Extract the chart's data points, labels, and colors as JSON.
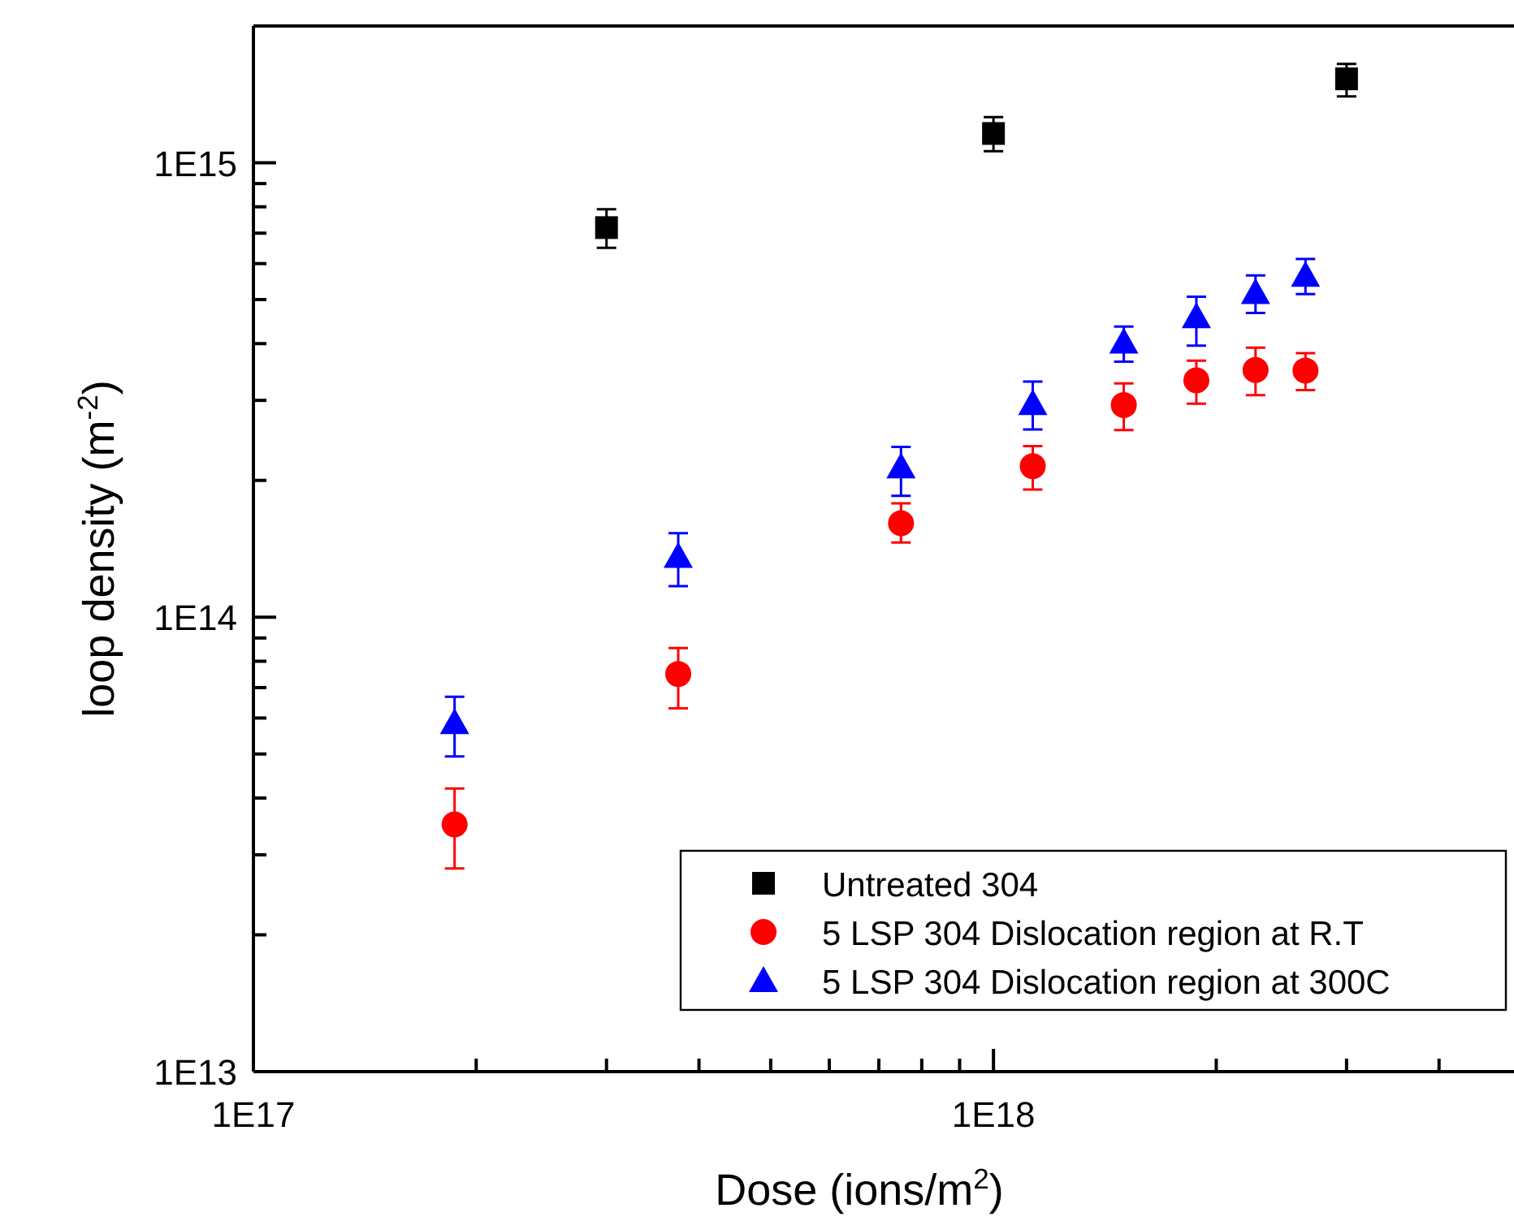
{
  "chart_data": {
    "type": "scatter",
    "xlabel": "Dose (ions/m$^{2}$)",
    "ylabel": "loop density (m$^{-2}$)",
    "log": "xy",
    "xlim": [
      1e+17,
      5e+18
    ],
    "ylim": [
      10000000000000.0,
      2000000000000000.0
    ],
    "xticks": [
      {
        "value": 1e+17,
        "label": "1E17"
      },
      {
        "value": 2e+17,
        "label": null
      },
      {
        "value": 3e+17,
        "label": null
      },
      {
        "value": 4e+17,
        "label": null
      },
      {
        "value": 5e+17,
        "label": null
      },
      {
        "value": 6e+17,
        "label": null
      },
      {
        "value": 7e+17,
        "label": null
      },
      {
        "value": 8e+17,
        "label": null
      },
      {
        "value": 9e+17,
        "label": null
      },
      {
        "value": 1e+18,
        "label": "1E18"
      },
      {
        "value": 2e+18,
        "label": null
      },
      {
        "value": 3e+18,
        "label": null
      },
      {
        "value": 4e+18,
        "label": null
      }
    ],
    "yticks": [
      {
        "value": 10000000000000.0,
        "label": "1E13"
      },
      {
        "value": 20000000000000.0,
        "label": null
      },
      {
        "value": 30000000000000.0,
        "label": null
      },
      {
        "value": 40000000000000.0,
        "label": null
      },
      {
        "value": 50000000000000.0,
        "label": null
      },
      {
        "value": 60000000000000.0,
        "label": null
      },
      {
        "value": 70000000000000.0,
        "label": null
      },
      {
        "value": 80000000000000.0,
        "label": null
      },
      {
        "value": 90000000000000.0,
        "label": null
      },
      {
        "value": 100000000000000.0,
        "label": "1E14"
      },
      {
        "value": 200000000000000.0,
        "label": null
      },
      {
        "value": 300000000000000.0,
        "label": null
      },
      {
        "value": 400000000000000.0,
        "label": null
      },
      {
        "value": 500000000000000.0,
        "label": null
      },
      {
        "value": 600000000000000.0,
        "label": null
      },
      {
        "value": 700000000000000.0,
        "label": null
      },
      {
        "value": 800000000000000.0,
        "label": null
      },
      {
        "value": 900000000000000.0,
        "label": null
      },
      {
        "value": 1000000000000000.0,
        "label": "1E15"
      }
    ],
    "grid": false,
    "legend": "bottom right",
    "series": [
      {
        "name": "Untreated 304",
        "color": "#000000",
        "marker": "square",
        "x": [
          3e+17,
          1e+18,
          3e+18
        ],
        "values": [
          720000000000000.0,
          1160000000000000.0,
          1530000000000000.0
        ],
        "errors": [
          [
            650000000000000.0,
            790000000000000.0
          ],
          [
            1060000000000000.0,
            1260000000000000.0
          ],
          [
            1400000000000000.0,
            1650000000000000.0
          ]
        ]
      },
      {
        "name": "5 LSP 304 Dislocation region at R.T",
        "color": "#ff0000",
        "marker": "circle",
        "x": [
          1.87e+17,
          3.75e+17,
          7.5e+17,
          1.13e+18,
          1.5e+18,
          1.88e+18,
          2.26e+18,
          2.64e+18
        ],
        "values": [
          35000000000000.0,
          75000000000000.0,
          161000000000000.0,
          215000000000000.0,
          293000000000000.0,
          332000000000000.0,
          350000000000000.0,
          349000000000000.0
        ],
        "errors": [
          [
            28000000000000.0,
            42000000000000.0
          ],
          [
            63000000000000.0,
            85500000000000.0
          ],
          [
            146000000000000.0,
            178000000000000.0
          ],
          [
            191000000000000.0,
            238000000000000.0
          ],
          [
            258000000000000.0,
            327000000000000.0
          ],
          [
            295000000000000.0,
            367000000000000.0
          ],
          [
            308000000000000.0,
            392000000000000.0
          ],
          [
            316000000000000.0,
            381000000000000.0
          ]
        ]
      },
      {
        "name": "5 LSP 304 Dislocation region at 300C",
        "color": "#0000ff",
        "marker": "triangle",
        "x": [
          1.87e+17,
          3.75e+17,
          7.5e+17,
          1.13e+18,
          1.5e+18,
          1.88e+18,
          2.26e+18,
          2.64e+18
        ],
        "values": [
          58600000000000.0,
          136000000000000.0,
          214000000000000.0,
          295000000000000.0,
          403000000000000.0,
          458000000000000.0,
          518000000000000.0,
          565000000000000.0
        ],
        "errors": [
          [
            49400000000000.0,
            66800000000000.0
          ],
          [
            117000000000000.0,
            153000000000000.0
          ],
          [
            185000000000000.0,
            237000000000000.0
          ],
          [
            259000000000000.0,
            330000000000000.0
          ],
          [
            365000000000000.0,
            436000000000000.0
          ],
          [
            396000000000000.0,
            507000000000000.0
          ],
          [
            467000000000000.0,
            565000000000000.0
          ],
          [
            514000000000000.0,
            614000000000000.0
          ]
        ]
      }
    ]
  }
}
